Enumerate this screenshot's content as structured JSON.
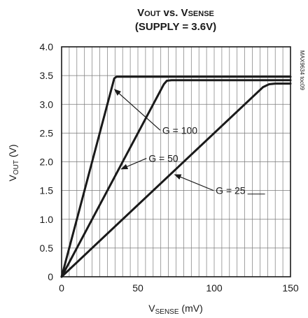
{
  "chart_data": {
    "type": "line",
    "title": {
      "line1": {
        "v": "V",
        "sub": "OUT",
        "mid": " vs. V",
        "sub2": "SENSE"
      },
      "line2": "(SUPPLY = 3.6V)"
    },
    "xlabel": {
      "main": "V",
      "sub": "SENSE",
      "tail": " (mV)"
    },
    "ylabel": {
      "main": "V",
      "sub": "OUT",
      "tail": " (V)"
    },
    "xlim": [
      0,
      150
    ],
    "ylim": [
      0,
      4.0
    ],
    "xticks": [
      "0",
      "50",
      "100",
      "150"
    ],
    "xtick_values": [
      0,
      50,
      100,
      150
    ],
    "yticks": [
      "0",
      "0.5",
      "1.0",
      "1.5",
      "2.0",
      "2.5",
      "3.0",
      "3.5",
      "4.0"
    ],
    "ytick_values": [
      0,
      0.5,
      1.0,
      1.5,
      2.0,
      2.5,
      3.0,
      3.5,
      4.0
    ],
    "grid": true,
    "series": [
      {
        "name": "G = 100",
        "x": [
          0,
          34.5,
          36,
          150
        ],
        "y": [
          0,
          3.45,
          3.48,
          3.48
        ]
      },
      {
        "name": "G = 50",
        "x": [
          0,
          67,
          69,
          72,
          150
        ],
        "y": [
          0,
          3.35,
          3.41,
          3.42,
          3.42
        ]
      },
      {
        "name": "G = 25",
        "x": [
          0,
          132,
          136,
          140,
          150
        ],
        "y": [
          0,
          3.3,
          3.35,
          3.36,
          3.36
        ]
      }
    ],
    "annotations": [
      {
        "text": "G = 100",
        "series": 0,
        "at_x": 33,
        "label_x": 66,
        "label_y": 2.55
      },
      {
        "text": "G = 50",
        "series": 1,
        "at_x": 37,
        "label_x": 57,
        "label_y": 2.06
      },
      {
        "text": "G = 25",
        "series": 2,
        "at_x": 72,
        "label_x": 101,
        "label_y": 1.5
      }
    ],
    "figure_code": "MAX9634 toc09"
  }
}
